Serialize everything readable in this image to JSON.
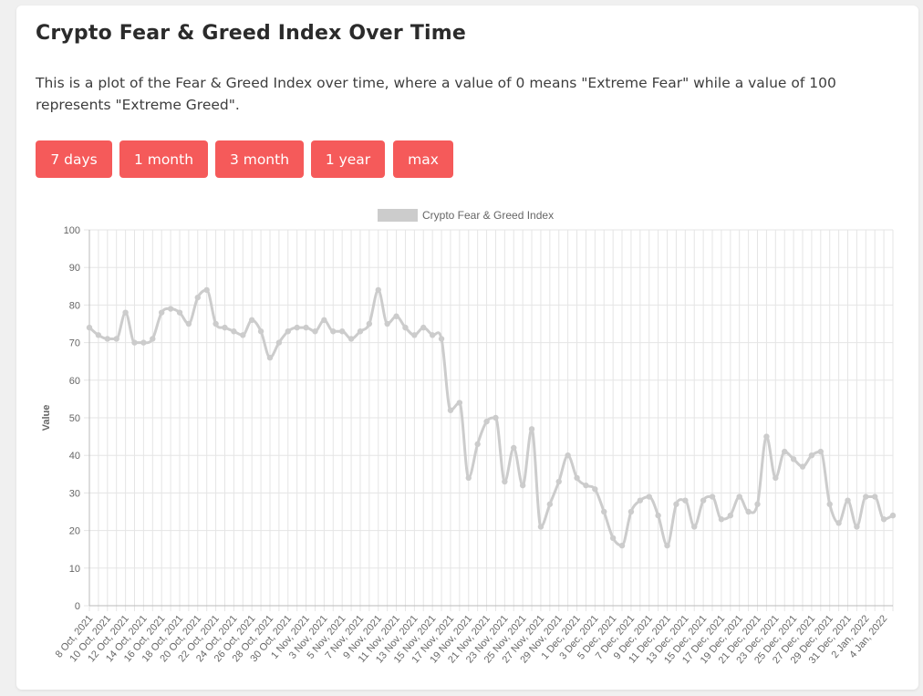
{
  "page": {
    "title": "Crypto Fear & Greed Index Over Time",
    "description": "This is a plot of the Fear & Greed Index over time, where a value of 0 means \"Extreme Fear\" while a value of 100 represents \"Extreme Greed\"."
  },
  "buttons": [
    "7 days",
    "1 month",
    "3 month",
    "1 year",
    "max"
  ],
  "colors": {
    "button_bg": "#f55a5a",
    "series": "#cccccc",
    "grid": "#e5e5e5"
  },
  "chart_data": {
    "type": "line",
    "title": "",
    "xlabel": "",
    "ylabel": "Value",
    "ylim": [
      0,
      100
    ],
    "yticks": [
      0,
      10,
      20,
      30,
      40,
      50,
      60,
      70,
      80,
      90,
      100
    ],
    "grid": true,
    "legend_position": "top",
    "x": [
      "8 Oct, 2021",
      "9 Oct, 2021",
      "10 Oct, 2021",
      "11 Oct, 2021",
      "12 Oct, 2021",
      "13 Oct, 2021",
      "14 Oct, 2021",
      "15 Oct, 2021",
      "16 Oct, 2021",
      "17 Oct, 2021",
      "18 Oct, 2021",
      "19 Oct, 2021",
      "20 Oct, 2021",
      "21 Oct, 2021",
      "22 Oct, 2021",
      "23 Oct, 2021",
      "24 Oct, 2021",
      "25 Oct, 2021",
      "26 Oct, 2021",
      "27 Oct, 2021",
      "28 Oct, 2021",
      "29 Oct, 2021",
      "30 Oct, 2021",
      "31 Oct, 2021",
      "1 Nov, 2021",
      "2 Nov, 2021",
      "3 Nov, 2021",
      "4 Nov, 2021",
      "5 Nov, 2021",
      "6 Nov, 2021",
      "7 Nov, 2021",
      "8 Nov, 2021",
      "9 Nov, 2021",
      "10 Nov, 2021",
      "11 Nov, 2021",
      "12 Nov, 2021",
      "13 Nov, 2021",
      "14 Nov, 2021",
      "15 Nov, 2021",
      "16 Nov, 2021",
      "17 Nov, 2021",
      "18 Nov, 2021",
      "19 Nov, 2021",
      "20 Nov, 2021",
      "21 Nov, 2021",
      "22 Nov, 2021",
      "23 Nov, 2021",
      "24 Nov, 2021",
      "25 Nov, 2021",
      "26 Nov, 2021",
      "27 Nov, 2021",
      "28 Nov, 2021",
      "29 Nov, 2021",
      "30 Nov, 2021",
      "1 Dec, 2021",
      "2 Dec, 2021",
      "3 Dec, 2021",
      "4 Dec, 2021",
      "5 Dec, 2021",
      "6 Dec, 2021",
      "7 Dec, 2021",
      "8 Dec, 2021",
      "9 Dec, 2021",
      "10 Dec, 2021",
      "11 Dec, 2021",
      "12 Dec, 2021",
      "13 Dec, 2021",
      "14 Dec, 2021",
      "15 Dec, 2021",
      "16 Dec, 2021",
      "17 Dec, 2021",
      "18 Dec, 2021",
      "19 Dec, 2021",
      "20 Dec, 2021",
      "21 Dec, 2021",
      "22 Dec, 2021",
      "23 Dec, 2021",
      "24 Dec, 2021",
      "25 Dec, 2021",
      "26 Dec, 2021",
      "27 Dec, 2021",
      "28 Dec, 2021",
      "29 Dec, 2021",
      "30 Dec, 2021",
      "31 Dec, 2021",
      "1 Jan, 2022",
      "2 Jan, 2022",
      "3 Jan, 2022",
      "4 Jan, 2022",
      "5 Jan, 2022"
    ],
    "series": [
      {
        "name": "Crypto Fear & Greed Index",
        "values": [
          74,
          72,
          71,
          71,
          78,
          70,
          70,
          71,
          78,
          79,
          78,
          75,
          82,
          84,
          75,
          74,
          73,
          72,
          76,
          73,
          66,
          70,
          73,
          74,
          74,
          73,
          76,
          73,
          73,
          71,
          73,
          75,
          84,
          75,
          77,
          74,
          72,
          74,
          72,
          71,
          52,
          54,
          34,
          43,
          49,
          50,
          33,
          42,
          32,
          47,
          21,
          27,
          33,
          40,
          34,
          32,
          31,
          25,
          18,
          16,
          25,
          28,
          29,
          24,
          16,
          27,
          28,
          21,
          28,
          29,
          23,
          24,
          29,
          25,
          27,
          45,
          34,
          41,
          39,
          37,
          40,
          41,
          27,
          22,
          28,
          21,
          29,
          29,
          23,
          24
        ]
      }
    ]
  }
}
